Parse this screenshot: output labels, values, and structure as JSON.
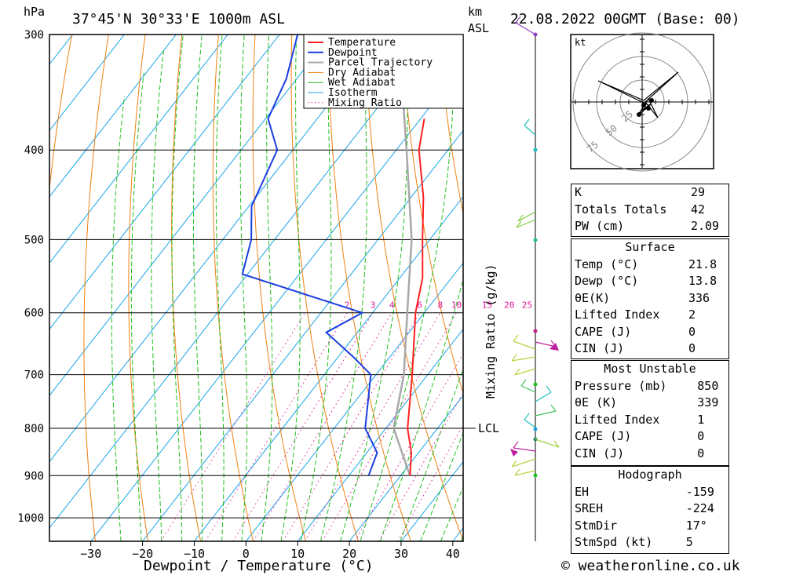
{
  "header": {
    "pressure_unit": "hPa",
    "location": "37°45'N  30°33'E  1000m  ASL",
    "km_label": "km",
    "asl_label": "ASL",
    "datetime": "22.08.2022  00GMT  (Base: 00)"
  },
  "credit": "© weatheronline.co.uk",
  "chart_data": {
    "type": "skew-t",
    "xlabel": "Dewpoint / Temperature (°C)",
    "ylabel_right": "Mixing Ratio (g/kg)",
    "xlim": [
      -38,
      42
    ],
    "plim": [
      1060,
      300
    ],
    "pressure_ticks": [
      300,
      400,
      500,
      600,
      700,
      800,
      900,
      1000
    ],
    "temp_ticks": [
      -30,
      -20,
      -10,
      0,
      10,
      20,
      30,
      40
    ],
    "lcl_label": "LCL",
    "lcl_pressure": 800,
    "legend": [
      "Temperature",
      "Dewpoint",
      "Parcel Trajectory",
      "Dry Adiabat",
      "Wet Adiabat",
      "Isotherm",
      "Mixing Ratio"
    ],
    "mixing_ratio_labels": [
      "2",
      "3",
      "4",
      "6",
      "8",
      "10",
      "15",
      "20",
      "25"
    ],
    "temperature": [
      [
        900,
        21.8
      ],
      [
        850,
        18.6
      ],
      [
        800,
        14.2
      ],
      [
        700,
        7.0
      ],
      [
        600,
        -1.7
      ],
      [
        550,
        -5.6
      ],
      [
        500,
        -11.4
      ],
      [
        450,
        -17.6
      ],
      [
        400,
        -25.6
      ],
      [
        370,
        -29.3
      ]
    ],
    "dewpoint": [
      [
        900,
        13.8
      ],
      [
        850,
        12.0
      ],
      [
        800,
        6.0
      ],
      [
        700,
        -1.0
      ],
      [
        670,
        -7.0
      ],
      [
        630,
        -16.0
      ],
      [
        600,
        -12.0
      ],
      [
        545,
        -41.0
      ],
      [
        500,
        -44.5
      ],
      [
        460,
        -49.5
      ],
      [
        400,
        -53.0
      ],
      [
        370,
        -59.5
      ],
      [
        335,
        -62.0
      ],
      [
        300,
        -66.5
      ]
    ],
    "parcel": [
      [
        900,
        21.8
      ],
      [
        800,
        11.5
      ],
      [
        700,
        5.4
      ],
      [
        600,
        -3.3
      ],
      [
        500,
        -13.5
      ],
      [
        400,
        -28.0
      ],
      [
        300,
        -47.0
      ]
    ],
    "colors": {
      "temperature": "#ff2020",
      "dewpoint": "#1a3ee0",
      "parcel": "#a8a8a8",
      "dry_adiabat": "#f08010",
      "wet_adiabat": "#20c020",
      "isotherm": "#1aa4e8",
      "mixing_ratio": "#e0189a"
    }
  },
  "hodograph": {
    "unit": "kt",
    "ring_labels": [
      "25",
      "50",
      "75"
    ]
  },
  "indices": {
    "k_label": "K",
    "k": "29",
    "tt_label": "Totals Totals",
    "tt": "42",
    "pw_label": "PW (cm)",
    "pw": "2.09"
  },
  "surface": {
    "title": "Surface",
    "temp_label": "Temp (°C)",
    "temp": "21.8",
    "dewp_label": "Dewp (°C)",
    "dewp": "13.8",
    "theta_label": "θE(K)",
    "theta": "336",
    "li_label": "Lifted Index",
    "li": "2",
    "cape_label": "CAPE (J)",
    "cape": "0",
    "cin_label": "CIN (J)",
    "cin": "0"
  },
  "most_unstable": {
    "title": "Most Unstable",
    "pressure_label": "Pressure (mb)",
    "pressure": "850",
    "theta_label": "θE (K)",
    "theta": "339",
    "li_label": "Lifted Index",
    "li": "1",
    "cape_label": "CAPE (J)",
    "cape": "0",
    "cin_label": "CIN (J)",
    "cin": "0"
  },
  "hodo_stats": {
    "title": "Hodograph",
    "eh_label": "EH",
    "eh": "-159",
    "sreh_label": "SREH",
    "sreh": "-224",
    "stmdir_label": "StmDir",
    "stmdir": "17°",
    "stmspd_label": "StmSpd (kt)",
    "stmspd": "5"
  }
}
